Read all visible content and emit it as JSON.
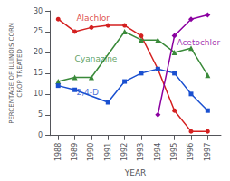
{
  "chart_data": {
    "type": "line",
    "xlabel": "YEAR",
    "ylabel": "PERCENTAGE OF ILLINOIS CORN\nCROP TREATED",
    "x": [
      1988,
      1989,
      1990,
      1991,
      1992,
      1993,
      1994,
      1995,
      1996,
      1997
    ],
    "xlim": [
      1987.5,
      1997.8
    ],
    "xticks": [
      1988,
      1989,
      1990,
      1991,
      1992,
      1993,
      1994,
      1995,
      1996,
      1997
    ],
    "ylim": [
      0,
      30
    ],
    "yticks": [
      0,
      5,
      10,
      15,
      20,
      25,
      30
    ],
    "grid": false,
    "series": [
      {
        "name": "Alachlor",
        "color": "#d42020",
        "marker": "circle",
        "values": [
          28,
          25,
          26,
          26.5,
          26.5,
          24,
          16,
          6,
          1,
          1
        ]
      },
      {
        "name": "Cyanazine",
        "color": "#3a8a3a",
        "marker": "triangle",
        "values": [
          13,
          14,
          14,
          null,
          25,
          23,
          23,
          20,
          21,
          14.5
        ]
      },
      {
        "name": "2,4-D",
        "color": "#1a50d0",
        "marker": "square",
        "values": [
          12,
          11,
          null,
          8,
          13,
          15,
          16,
          15,
          10,
          6
        ]
      },
      {
        "name": "Acetochlor",
        "color": "#8b00a0",
        "marker": "diamond",
        "values": [
          null,
          null,
          null,
          null,
          null,
          null,
          5,
          24,
          28,
          29
        ]
      }
    ],
    "annotations": [
      {
        "text": "Alachlor",
        "x": 1989.1,
        "y": 27.2,
        "color": "#d42020"
      },
      {
        "text": "Cyanazine",
        "x": 1989.0,
        "y": 17.5,
        "color": "#3a8a3a"
      },
      {
        "text": "2,4-D",
        "x": 1989.1,
        "y": 9.5,
        "color": "#1a50d0"
      },
      {
        "text": "Acetochlor",
        "x": 1995.15,
        "y": 21.5,
        "color": "#8b00a0"
      }
    ]
  }
}
